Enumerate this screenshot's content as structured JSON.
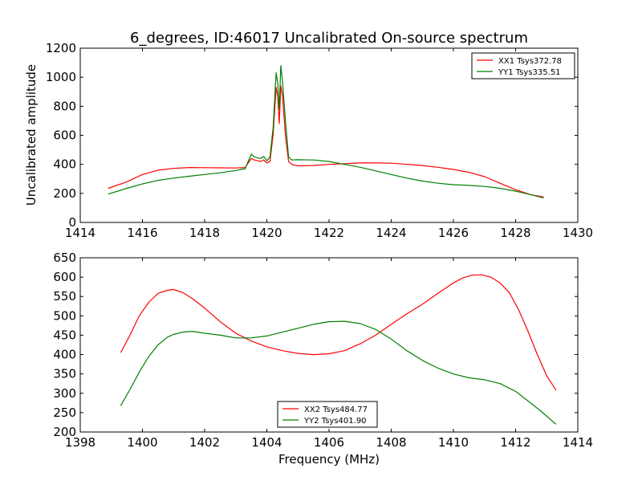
{
  "title": "6_degrees, ID:46017 Uncalibrated On-source spectrum",
  "xlabel": "Frequency (MHz)",
  "ylabel_top": "Uncalibrated amplitude",
  "colors": {
    "red": "#ff0000",
    "green": "#008000"
  },
  "chart_data": [
    {
      "type": "line",
      "xlim": [
        1414,
        1430
      ],
      "ylim": [
        0,
        1200
      ],
      "xticks": [
        1414,
        1416,
        1418,
        1420,
        1422,
        1424,
        1426,
        1428,
        1430
      ],
      "yticks": [
        0,
        200,
        400,
        600,
        800,
        1000,
        1200
      ],
      "legend_position": "top-right",
      "grid": false,
      "series": [
        {
          "name": "XX1 Tsys372.78",
          "color": "#ff0000",
          "x": [
            1414.9,
            1415.5,
            1416.0,
            1416.5,
            1417.0,
            1417.5,
            1418.0,
            1418.5,
            1419.0,
            1419.3,
            1419.5,
            1419.6,
            1419.8,
            1419.9,
            1420.0,
            1420.1,
            1420.2,
            1420.3,
            1420.35,
            1420.4,
            1420.45,
            1420.5,
            1420.6,
            1420.7,
            1420.8,
            1421.0,
            1421.5,
            1422.0,
            1422.5,
            1423.0,
            1423.5,
            1424.0,
            1424.5,
            1425.0,
            1425.5,
            1426.0,
            1426.5,
            1427.0,
            1427.5,
            1428.0,
            1428.5,
            1428.9
          ],
          "y": [
            235,
            280,
            330,
            360,
            372,
            378,
            377,
            376,
            375,
            378,
            440,
            430,
            420,
            430,
            410,
            420,
            600,
            930,
            870,
            680,
            940,
            880,
            600,
            420,
            400,
            390,
            392,
            400,
            405,
            410,
            410,
            408,
            400,
            392,
            380,
            365,
            345,
            315,
            270,
            225,
            190,
            175
          ]
        },
        {
          "name": "YY1 Tsys335.51",
          "color": "#008000",
          "x": [
            1414.9,
            1415.5,
            1416.0,
            1416.5,
            1417.0,
            1417.5,
            1418.0,
            1418.5,
            1419.0,
            1419.3,
            1419.5,
            1419.6,
            1419.8,
            1419.9,
            1420.0,
            1420.1,
            1420.2,
            1420.3,
            1420.35,
            1420.4,
            1420.45,
            1420.5,
            1420.6,
            1420.7,
            1420.8,
            1421.0,
            1421.5,
            1422.0,
            1422.5,
            1423.0,
            1423.5,
            1424.0,
            1424.5,
            1425.0,
            1425.5,
            1426.0,
            1426.5,
            1427.0,
            1427.5,
            1428.0,
            1428.5,
            1428.9
          ],
          "y": [
            195,
            235,
            265,
            290,
            305,
            318,
            330,
            342,
            358,
            370,
            470,
            450,
            440,
            455,
            425,
            450,
            650,
            1030,
            960,
            780,
            1080,
            980,
            700,
            450,
            430,
            432,
            430,
            420,
            400,
            380,
            355,
            330,
            305,
            285,
            270,
            260,
            255,
            248,
            235,
            215,
            190,
            168
          ]
        }
      ]
    },
    {
      "type": "line",
      "xlim": [
        1398,
        1414
      ],
      "ylim": [
        200,
        650
      ],
      "xticks": [
        1398,
        1400,
        1402,
        1404,
        1406,
        1408,
        1410,
        1412,
        1414
      ],
      "yticks": [
        200,
        250,
        300,
        350,
        400,
        450,
        500,
        550,
        600,
        650
      ],
      "legend_position": "lower-center",
      "grid": false,
      "series": [
        {
          "name": "XX2 Tsys484.77",
          "color": "#ff0000",
          "x": [
            1399.3,
            1399.6,
            1399.9,
            1400.2,
            1400.5,
            1400.8,
            1401.0,
            1401.3,
            1401.6,
            1402.0,
            1402.5,
            1403.0,
            1403.5,
            1404.0,
            1404.5,
            1405.0,
            1405.5,
            1406.0,
            1406.5,
            1407.0,
            1407.5,
            1408.0,
            1408.5,
            1409.0,
            1409.5,
            1410.0,
            1410.3,
            1410.6,
            1410.9,
            1411.2,
            1411.5,
            1411.8,
            1412.1,
            1412.4,
            1412.7,
            1413.0,
            1413.3
          ],
          "y": [
            405,
            450,
            500,
            535,
            558,
            566,
            568,
            560,
            545,
            520,
            485,
            455,
            435,
            420,
            410,
            403,
            400,
            402,
            410,
            428,
            450,
            478,
            505,
            530,
            558,
            585,
            598,
            605,
            606,
            600,
            585,
            560,
            515,
            460,
            400,
            345,
            308
          ]
        },
        {
          "name": "YY2 Tsys401.90",
          "color": "#008000",
          "x": [
            1399.3,
            1399.6,
            1399.9,
            1400.2,
            1400.5,
            1400.8,
            1401.0,
            1401.3,
            1401.6,
            1402.0,
            1402.5,
            1403.0,
            1403.5,
            1404.0,
            1404.5,
            1405.0,
            1405.5,
            1406.0,
            1406.5,
            1407.0,
            1407.5,
            1408.0,
            1408.5,
            1409.0,
            1409.5,
            1410.0,
            1410.5,
            1411.0,
            1411.5,
            1412.0,
            1412.4,
            1412.8,
            1413.3
          ],
          "y": [
            268,
            310,
            355,
            395,
            425,
            445,
            452,
            458,
            460,
            455,
            450,
            443,
            443,
            448,
            458,
            468,
            478,
            485,
            486,
            480,
            465,
            440,
            410,
            385,
            365,
            350,
            340,
            335,
            325,
            305,
            280,
            255,
            220
          ]
        }
      ]
    }
  ]
}
